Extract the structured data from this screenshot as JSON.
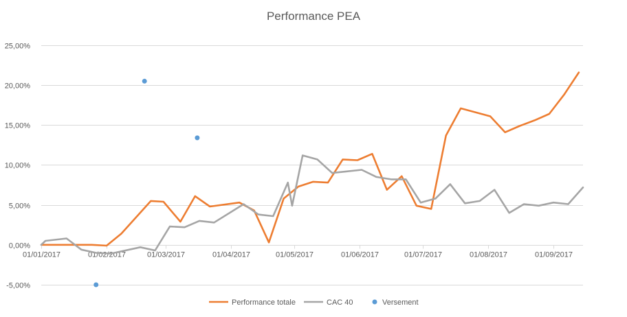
{
  "chart_data": {
    "type": "line",
    "title": "Performance PEA",
    "xlabel": "",
    "ylabel": "",
    "x_axis": {
      "type": "date",
      "min": "2017-01-01",
      "max": "2017-09-15",
      "tick_labels": [
        "01/01/2017",
        "01/02/2017",
        "01/03/2017",
        "01/04/2017",
        "01/05/2017",
        "01/06/2017",
        "01/07/2017",
        "01/08/2017",
        "01/09/2017"
      ],
      "tick_dates": [
        "2017-01-01",
        "2017-02-01",
        "2017-03-01",
        "2017-04-01",
        "2017-05-01",
        "2017-06-01",
        "2017-07-01",
        "2017-08-01",
        "2017-09-01"
      ]
    },
    "y_axis": {
      "min": -0.05,
      "max": 0.25,
      "step": 0.05,
      "tick_labels": [
        "-5,00%",
        "0,00%",
        "5,00%",
        "10,00%",
        "15,00%",
        "20,00%",
        "25,00%"
      ]
    },
    "grid": true,
    "legend_position": "bottom",
    "series": [
      {
        "name": "Performance totale",
        "kind": "line",
        "color": "#ED7D31",
        "points": [
          [
            "2017-01-01",
            0.0
          ],
          [
            "2017-01-13",
            0.0
          ],
          [
            "2017-01-25",
            0.0
          ],
          [
            "2017-02-01",
            -0.001
          ],
          [
            "2017-02-08",
            0.014
          ],
          [
            "2017-02-22",
            0.055
          ],
          [
            "2017-02-28",
            0.054
          ],
          [
            "2017-03-08",
            0.029
          ],
          [
            "2017-03-15",
            0.061
          ],
          [
            "2017-03-22",
            0.048
          ],
          [
            "2017-04-05",
            0.053
          ],
          [
            "2017-04-12",
            0.043
          ],
          [
            "2017-04-19",
            0.003
          ],
          [
            "2017-04-26",
            0.058
          ],
          [
            "2017-05-03",
            0.073
          ],
          [
            "2017-05-10",
            0.079
          ],
          [
            "2017-05-17",
            0.078
          ],
          [
            "2017-05-24",
            0.107
          ],
          [
            "2017-05-31",
            0.106
          ],
          [
            "2017-06-07",
            0.114
          ],
          [
            "2017-06-14",
            0.069
          ],
          [
            "2017-06-21",
            0.086
          ],
          [
            "2017-06-28",
            0.049
          ],
          [
            "2017-07-05",
            0.045
          ],
          [
            "2017-07-12",
            0.137
          ],
          [
            "2017-07-19",
            0.171
          ],
          [
            "2017-08-02",
            0.161
          ],
          [
            "2017-08-09",
            0.141
          ],
          [
            "2017-08-16",
            0.149
          ],
          [
            "2017-08-23",
            0.156
          ],
          [
            "2017-08-30",
            0.164
          ],
          [
            "2017-09-06",
            0.188
          ],
          [
            "2017-09-13",
            0.216
          ]
        ]
      },
      {
        "name": "CAC 40",
        "kind": "line",
        "color": "#A5A5A5",
        "points": [
          [
            "2017-01-01",
            0.0
          ],
          [
            "2017-01-03",
            0.005
          ],
          [
            "2017-01-13",
            0.008
          ],
          [
            "2017-01-20",
            -0.006
          ],
          [
            "2017-01-27",
            -0.01
          ],
          [
            "2017-02-03",
            -0.011
          ],
          [
            "2017-02-17",
            -0.003
          ],
          [
            "2017-02-24",
            -0.007
          ],
          [
            "2017-03-03",
            0.023
          ],
          [
            "2017-03-10",
            0.022
          ],
          [
            "2017-03-17",
            0.03
          ],
          [
            "2017-03-24",
            0.028
          ],
          [
            "2017-04-07",
            0.051
          ],
          [
            "2017-04-14",
            0.038
          ],
          [
            "2017-04-21",
            0.036
          ],
          [
            "2017-04-28",
            0.078
          ],
          [
            "2017-04-30",
            0.049
          ],
          [
            "2017-05-05",
            0.112
          ],
          [
            "2017-05-12",
            0.107
          ],
          [
            "2017-05-19",
            0.09
          ],
          [
            "2017-05-26",
            0.092
          ],
          [
            "2017-06-02",
            0.094
          ],
          [
            "2017-06-09",
            0.085
          ],
          [
            "2017-06-16",
            0.082
          ],
          [
            "2017-06-23",
            0.082
          ],
          [
            "2017-06-30",
            0.053
          ],
          [
            "2017-07-07",
            0.058
          ],
          [
            "2017-07-14",
            0.076
          ],
          [
            "2017-07-21",
            0.052
          ],
          [
            "2017-07-28",
            0.055
          ],
          [
            "2017-08-04",
            0.069
          ],
          [
            "2017-08-11",
            0.04
          ],
          [
            "2017-08-18",
            0.051
          ],
          [
            "2017-08-25",
            0.049
          ],
          [
            "2017-09-01",
            0.053
          ],
          [
            "2017-09-08",
            0.051
          ],
          [
            "2017-09-15",
            0.072
          ]
        ]
      },
      {
        "name": "Versement",
        "kind": "scatter",
        "color": "#5B9BD5",
        "points": [
          [
            "2017-01-27",
            -0.05
          ],
          [
            "2017-02-19",
            0.205
          ],
          [
            "2017-03-16",
            0.134
          ]
        ]
      }
    ]
  }
}
